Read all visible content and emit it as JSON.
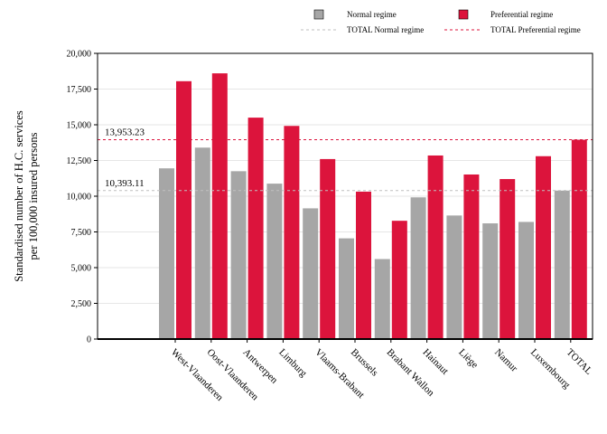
{
  "chart_data": {
    "type": "bar",
    "title": "",
    "xlabel": "",
    "ylabel_lines": [
      "Standardised number of H.C. services",
      "per 100,000 insured persons"
    ],
    "ylim": [
      0,
      20000
    ],
    "yticks": [
      "0",
      "2,500",
      "5,000",
      "7,500",
      "10,000",
      "12,500",
      "15,000",
      "17,500",
      "20,000"
    ],
    "ytick_values": [
      0,
      2500,
      5000,
      7500,
      10000,
      12500,
      15000,
      17500,
      20000
    ],
    "grid": "horizontal",
    "legend_position": "top-right",
    "categories": [
      "West-Vlaanderen",
      "Oost-Vlaanderen",
      "Antwerpen",
      "Limburg",
      "Vlaams-Brabant",
      "Brussels",
      "Brabant Wallon",
      "Hainaut",
      "Liège",
      "Namur",
      "Luxembourg",
      "TOTAL"
    ],
    "series": [
      {
        "name": "Normal regime",
        "color": "#a6a6a6",
        "values": [
          11950,
          13400,
          11750,
          10880,
          9150,
          7050,
          5600,
          9920,
          8650,
          8100,
          8200,
          10393
        ]
      },
      {
        "name": "Preferential regime",
        "color": "#dc143c",
        "values": [
          18050,
          18600,
          15500,
          14920,
          12600,
          10320,
          8280,
          12850,
          11520,
          11200,
          12800,
          13953
        ]
      }
    ],
    "reference_lines": [
      {
        "name": "TOTAL Normal regime",
        "value": 10393.11,
        "label": "10,393.11",
        "color": "#bfbfbf"
      },
      {
        "name": "TOTAL Preferential regime",
        "value": 13953.23,
        "label": "13,953.23",
        "color": "#dc143c"
      }
    ]
  }
}
